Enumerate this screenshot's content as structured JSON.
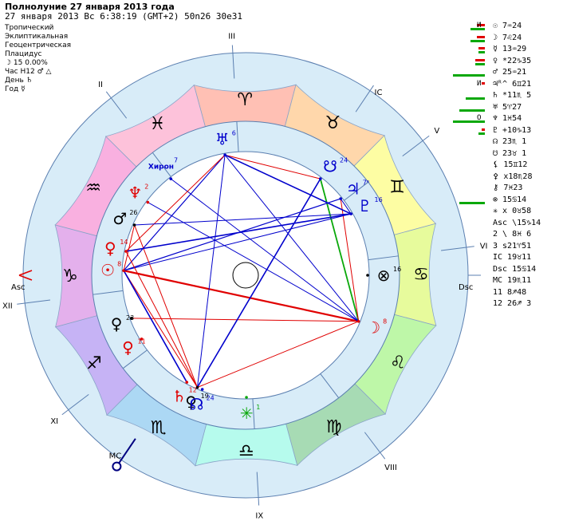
{
  "header": {
    "title": "Полнолуние 27 января 2013 года",
    "subtitle": "27 января 2013  Вс   6:38:19 (GMT+2) 50n26  30e31"
  },
  "info_lines": [
    "Тропический",
    "Эклиптикальная",
    "Геоцентрическая",
    "Плацидус",
    "☽  15 0.00%",
    "Час H12  ♂ △",
    "День  ♄",
    "Год  ☿"
  ],
  "planets": [
    {
      "mark": "И",
      "text": "☉   7♒24",
      "green": 18,
      "red": 10
    },
    {
      "mark": "",
      "text": "☽   7♌24",
      "green": 18,
      "red": 10
    },
    {
      "mark": "",
      "text": "☿  13♒29",
      "green": 8,
      "red": 8
    },
    {
      "mark": "",
      "text": "♀ *22♑35",
      "green": 12,
      "red": 12
    },
    {
      "mark": "",
      "text": "♂  25♒21",
      "green": 40,
      "red": 0
    },
    {
      "mark": "И",
      "text": "♃ᴿ^ 6♊21",
      "green": 0,
      "red": 4
    },
    {
      "mark": "",
      "text": "♄ *11♏ 5",
      "green": 24,
      "red": 0
    },
    {
      "mark": "",
      "text": "♅   5♈27",
      "green": 32,
      "red": 0
    },
    {
      "mark": "О",
      "text": "♆   1♓54",
      "green": 40,
      "red": 0
    },
    {
      "mark": "",
      "text": "♇ +10♑13",
      "green": 8,
      "red": 4
    },
    {
      "mark": "",
      "text": "☊  23♏ 1",
      "green": 0,
      "red": 0
    },
    {
      "mark": "",
      "text": "☋  23♉ 1",
      "green": 0,
      "red": 0
    },
    {
      "mark": "",
      "text": "⚸  15♊12",
      "green": 0,
      "red": 0
    },
    {
      "mark": "",
      "text": "⚴ x18♏28",
      "green": 0,
      "red": 0
    },
    {
      "mark": "",
      "text": "⚷   7♓23",
      "green": 0,
      "red": 0
    },
    {
      "mark": "",
      "text": "⊗  15♋14",
      "green": 32,
      "red": 0
    },
    {
      "mark": "",
      "text": "✳ x 0♉58",
      "green": 0,
      "red": 0
    },
    {
      "mark": "",
      "text": "Asc \\15♑14",
      "green": 0,
      "red": 0
    },
    {
      "mark": "",
      "text": "2  \\ 8♓ 6",
      "green": 0,
      "red": 0
    },
    {
      "mark": "",
      "text": "3  s21♈51",
      "green": 0,
      "red": 0
    },
    {
      "mark": "",
      "text": "IC  19♉11",
      "green": 0,
      "red": 0
    },
    {
      "mark": "",
      "text": "Dsc 15♋14",
      "green": 0,
      "red": 0
    },
    {
      "mark": "",
      "text": "MC  19♏11",
      "green": 0,
      "red": 0
    },
    {
      "mark": "",
      "text": "11   8♐48",
      "green": 0,
      "red": 0
    },
    {
      "mark": "",
      "text": "12  26♐ 3",
      "green": 0,
      "red": 0
    }
  ],
  "wheel": {
    "asc_label": "Asc",
    "dsc_label": "Dsc",
    "mc_label": "MC",
    "ic_label": "IC",
    "houses": [
      {
        "label": "II",
        "lon": 338
      },
      {
        "label": "III",
        "lon": 11.9
      },
      {
        "label": "V",
        "lon": 68
      },
      {
        "label": "VI",
        "lon": 98
      },
      {
        "label": "VIII",
        "lon": 158
      },
      {
        "label": "IX",
        "lon": 191.9
      },
      {
        "label": "XI",
        "lon": 248
      },
      {
        "label": "XII",
        "lon": 278
      }
    ],
    "signs": [
      {
        "glyph": "♈",
        "fill": "#ffc0b4"
      },
      {
        "glyph": "♉",
        "fill": "#ffd7ab"
      },
      {
        "glyph": "♊",
        "fill": "#fdfda3"
      },
      {
        "glyph": "♋",
        "fill": "#e7fb9c"
      },
      {
        "glyph": "♌",
        "fill": "#bef7a8"
      },
      {
        "glyph": "♍",
        "fill": "#a7dbb4"
      },
      {
        "glyph": "♎",
        "fill": "#b6fbed"
      },
      {
        "glyph": "♏",
        "fill": "#acd8f4"
      },
      {
        "glyph": "♐",
        "fill": "#c6b3f5"
      },
      {
        "glyph": "♑",
        "fill": "#e4b0ec"
      },
      {
        "glyph": "♒",
        "fill": "#f9b0e0"
      },
      {
        "glyph": "♓",
        "fill": "#fdc2da"
      }
    ],
    "points": [
      {
        "glyph": "☽",
        "deg": "8",
        "lon": 127.4,
        "color": "#e00000"
      },
      {
        "glyph": "⊗",
        "deg": "16",
        "lon": 105.2,
        "color": "#000000"
      },
      {
        "glyph": "♇",
        "deg": "16",
        "lon": 75,
        "color": "#0000cc"
      },
      {
        "glyph": "♃",
        "deg": "7ᴿ",
        "lon": 66.35,
        "color": "#0000cc"
      },
      {
        "glyph": "☋",
        "deg": "24",
        "lon": 53,
        "color": "#0000cc"
      },
      {
        "glyph": "♅",
        "deg": "6",
        "lon": 5.45,
        "color": "#0000cc"
      },
      {
        "glyph": "Хирон",
        "deg": "7",
        "lon": 337.4,
        "color": "#0000cc"
      },
      {
        "glyph": "♆",
        "deg": "2",
        "lon": 321.9,
        "color": "#e00000"
      },
      {
        "glyph": "♂",
        "deg": "26",
        "lon": 309.5,
        "color": "#000000"
      },
      {
        "glyph": "♀",
        "deg": "14",
        "lon": 296.5,
        "color": "#e00000"
      },
      {
        "glyph": "☉",
        "deg": "8",
        "lon": 287.4,
        "color": "#e00000"
      },
      {
        "glyph": "♀",
        "deg": "23",
        "lon": 264.6,
        "color": "#000000"
      },
      {
        "glyph": "♀",
        "deg": "11",
        "lon": 253.7,
        "color": "#e00000"
      },
      {
        "glyph": "♄",
        "deg": "12",
        "lon": 224,
        "color": "#e00000"
      },
      {
        "glyph": "♀",
        "deg": "19",
        "lon": 218.5,
        "color": "#000000"
      },
      {
        "glyph": "☊",
        "deg": "24",
        "lon": 216,
        "color": "#0000cc"
      },
      {
        "glyph": "✳",
        "deg": "1",
        "lon": 194.8,
        "color": "#0aa80a"
      }
    ]
  }
}
